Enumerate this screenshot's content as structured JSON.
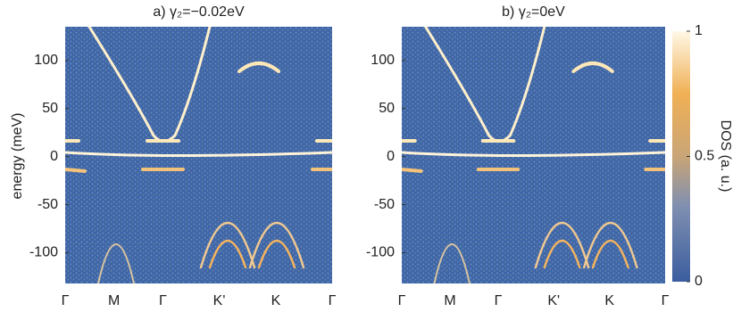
{
  "chart_data": [
    {
      "type": "heatmap",
      "title": "a)  γ₂=−0.02eV",
      "ylabel": "energy (meV)",
      "categories": [
        "Γ",
        "M",
        "Γ",
        "K'",
        "K",
        "Γ"
      ],
      "ylim": [
        -132,
        135
      ],
      "yticks": [
        -100,
        -50,
        0,
        50,
        100
      ]
    },
    {
      "type": "heatmap",
      "title": "b)  γ₂=0eV",
      "categories": [
        "Γ",
        "M",
        "Γ",
        "K'",
        "K",
        "Γ"
      ],
      "ylim": [
        -132,
        135
      ],
      "yticks": [
        -100,
        -50,
        0,
        50,
        100
      ]
    }
  ],
  "colorbar": {
    "label": "DOS  (a. u.)",
    "lim": [
      0,
      1
    ],
    "ticks": [
      0,
      0.5,
      1
    ]
  }
}
